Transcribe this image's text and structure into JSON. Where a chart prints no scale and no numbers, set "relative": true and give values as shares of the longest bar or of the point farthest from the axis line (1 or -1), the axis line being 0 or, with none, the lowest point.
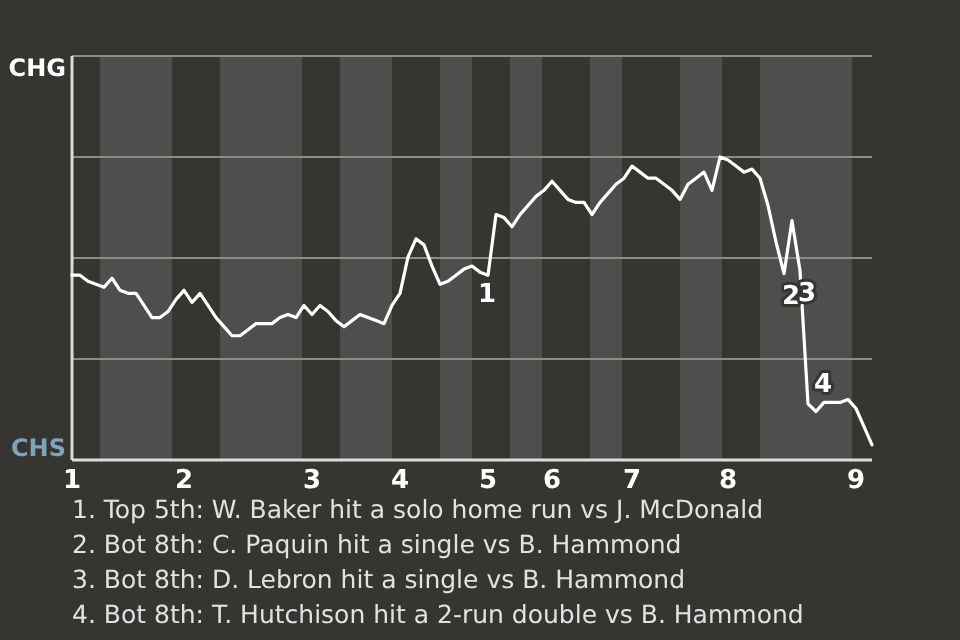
{
  "chart_data": {
    "type": "line",
    "relative": true,
    "categories": [
      "1",
      null,
      null,
      null,
      null,
      null,
      null,
      null,
      null,
      null,
      null,
      null,
      null,
      null,
      "2",
      null,
      null,
      null,
      null,
      null,
      null,
      null,
      null,
      null,
      null,
      null,
      null,
      null,
      null,
      null,
      "3",
      null,
      null,
      null,
      null,
      null,
      null,
      null,
      null,
      null,
      null,
      "4",
      null,
      null,
      null,
      null,
      null,
      null,
      null,
      null,
      null,
      null,
      "5",
      null,
      null,
      null,
      null,
      null,
      null,
      null,
      "6",
      null,
      null,
      null,
      null,
      null,
      null,
      null,
      null,
      null,
      "7",
      null,
      null,
      null,
      null,
      null,
      null,
      null,
      null,
      null,
      null,
      null,
      "8",
      null,
      null,
      null,
      null,
      null,
      null,
      null,
      null,
      null,
      null,
      null,
      null,
      null,
      null,
      null,
      "9",
      null,
      null
    ],
    "marker": "none",
    "line_style": "solid",
    "ref_lines": [
      {
        "axis": "y",
        "value": 0.333,
        "color": "#8e8c89"
      },
      {
        "axis": "y",
        "value": 0.667,
        "color": "#8e8c89"
      },
      {
        "axis": "y",
        "value": 1,
        "color": "#8e8c89"
      }
    ],
    "series": [
      {
        "color": "#ffffff",
        "values": [
          0.61,
          0.61,
          0.59,
          0.58,
          0.57,
          0.6,
          0.56,
          0.55,
          0.55,
          0.51,
          0.47,
          0.47,
          0.49,
          0.53,
          0.56,
          0.52,
          0.55,
          0.51,
          0.47,
          0.44,
          0.41,
          0.41,
          0.43,
          0.45,
          0.45,
          0.45,
          0.47,
          0.48,
          0.47,
          0.51,
          0.48,
          0.51,
          0.49,
          0.46,
          0.44,
          0.46,
          0.48,
          0.47,
          0.46,
          0.45,
          0.51,
          0.55,
          0.67,
          0.73,
          0.71,
          0.64,
          0.58,
          0.59,
          0.61,
          0.63,
          0.64,
          0.62,
          0.61,
          0.81,
          0.8,
          0.77,
          0.81,
          0.84,
          0.87,
          0.89,
          0.92,
          0.89,
          0.86,
          0.85,
          0.85,
          0.81,
          0.85,
          0.88,
          0.91,
          0.93,
          0.97,
          0.95,
          0.93,
          0.93,
          0.91,
          0.89,
          0.86,
          0.91,
          0.93,
          0.95,
          0.89,
          1,
          0.99,
          0.97,
          0.95,
          0.96,
          0.93,
          0.84,
          0.72,
          0.615,
          0.79,
          0.625,
          0.185,
          0.16,
          0.19,
          0.19,
          0.19,
          0.2,
          0.17,
          0.11,
          0.05
        ]
      }
    ],
    "annotations": [
      "CHG",
      "CHS",
      {
        "text": "1",
        "y": 0.62
      },
      {
        "text": "2",
        "y": 0.615
      },
      {
        "text": "3",
        "y": 0.625
      },
      {
        "text": "4",
        "y": 0.185
      },
      "1. Top 5th: W. Baker hit a solo home run vs J. McDonald",
      "2. Bot 8th: C. Paquin hit a single vs B. Hammond",
      "3. Bot 8th: D. Lebron hit a single vs B. Hammond",
      "4. Bot 8th: T. Hutchison hit a 2-run double vs B. Hammond"
    ]
  }
}
